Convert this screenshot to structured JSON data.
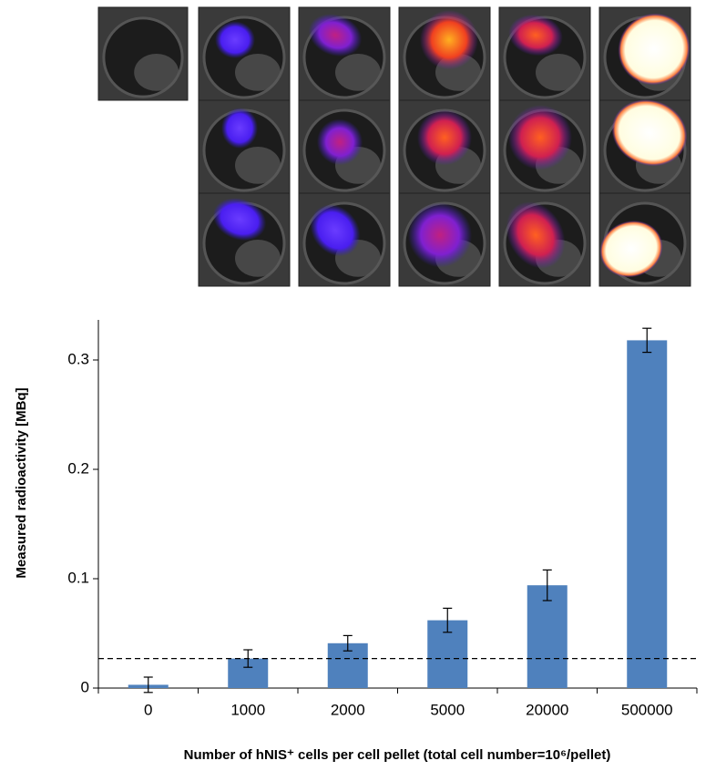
{
  "chart_data": {
    "type": "bar",
    "xlabel": "Number of hNIS⁺ cells per cell pellet (total cell number=10⁶/pellet)",
    "ylabel": "Measured radioactivity [MBq]",
    "categories": [
      "0",
      "1000",
      "2000",
      "5000",
      "20000",
      "500000"
    ],
    "values": [
      0.003,
      0.027,
      0.041,
      0.062,
      0.094,
      0.318
    ],
    "errors": [
      0.007,
      0.008,
      0.007,
      0.011,
      0.014,
      0.011
    ],
    "color": "#4f81bd",
    "threshold": 0.027,
    "ylim": [
      0,
      0.33
    ],
    "yticks": [
      0,
      0.1,
      0.2,
      0.3
    ]
  }
}
